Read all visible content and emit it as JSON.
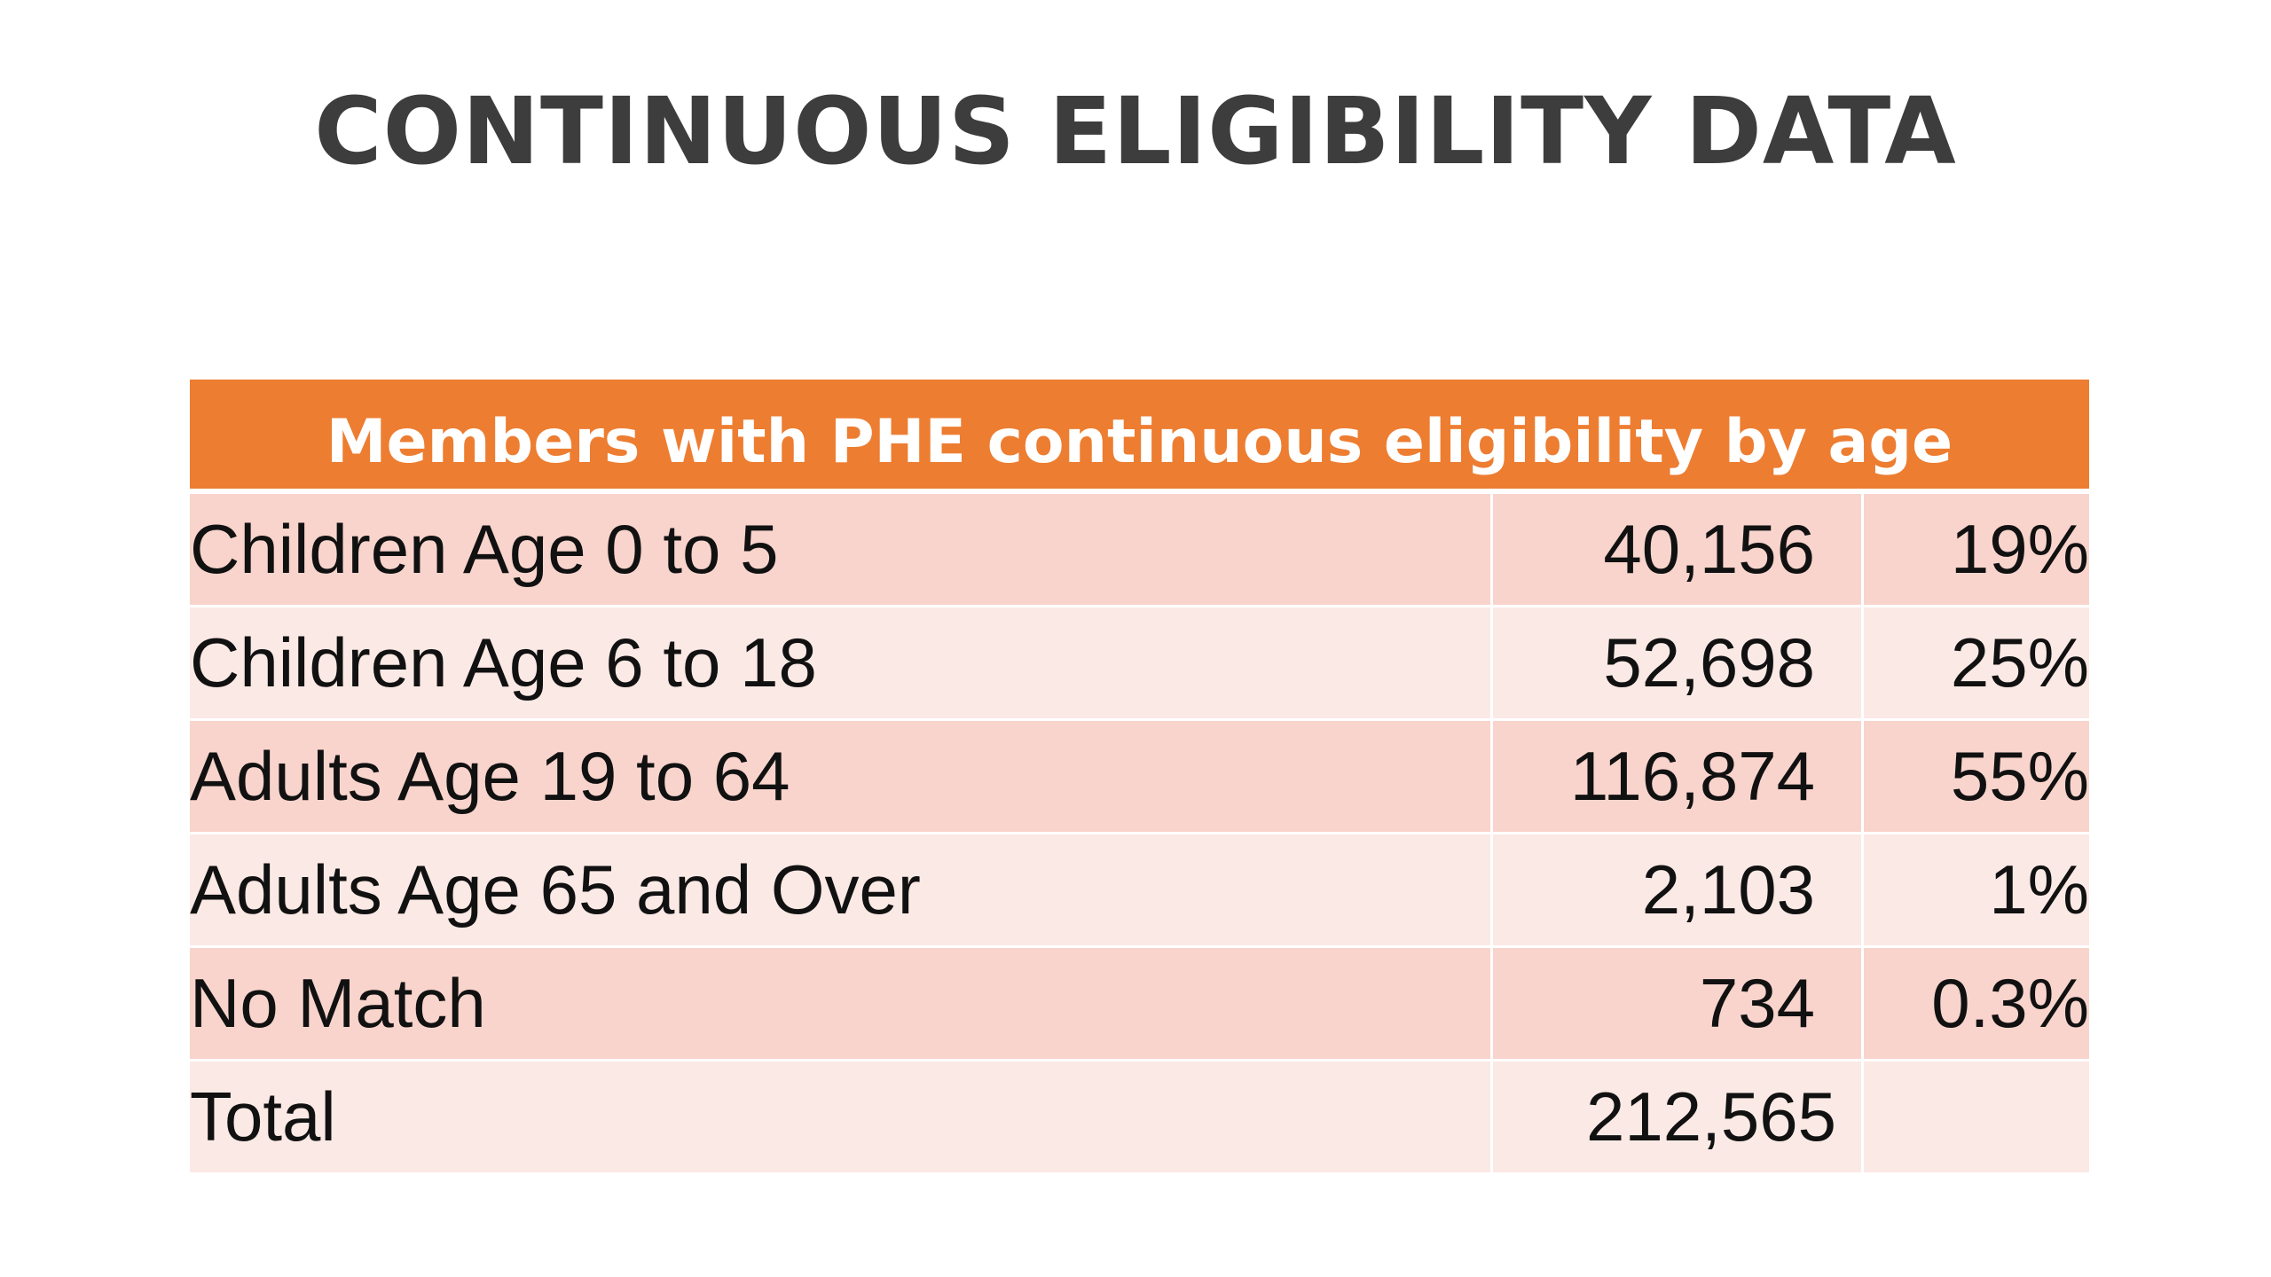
{
  "slide": {
    "title": "CONTINUOUS ELIGIBILITY DATA"
  },
  "table": {
    "header": "Members with PHE continuous eligibility by age",
    "rows": [
      {
        "label": "Children Age 0 to 5",
        "count": "40,156",
        "percent": "19%"
      },
      {
        "label": "Children Age 6 to 18",
        "count": "52,698",
        "percent": "25%"
      },
      {
        "label": "Adults Age 19 to 64",
        "count": "116,874",
        "percent": "55%"
      },
      {
        "label": "Adults Age 65 and Over",
        "count": "2,103",
        "percent": "1%"
      },
      {
        "label": "No Match",
        "count": "734",
        "percent": "0.3%"
      }
    ],
    "total": {
      "label": "Total",
      "count": "212,565",
      "percent": ""
    }
  },
  "colors": {
    "header_background": "#ed7d31",
    "row_dark": "#f8d4cc",
    "row_light": "#fbe9e5",
    "title_text": "#3d3d3d"
  }
}
